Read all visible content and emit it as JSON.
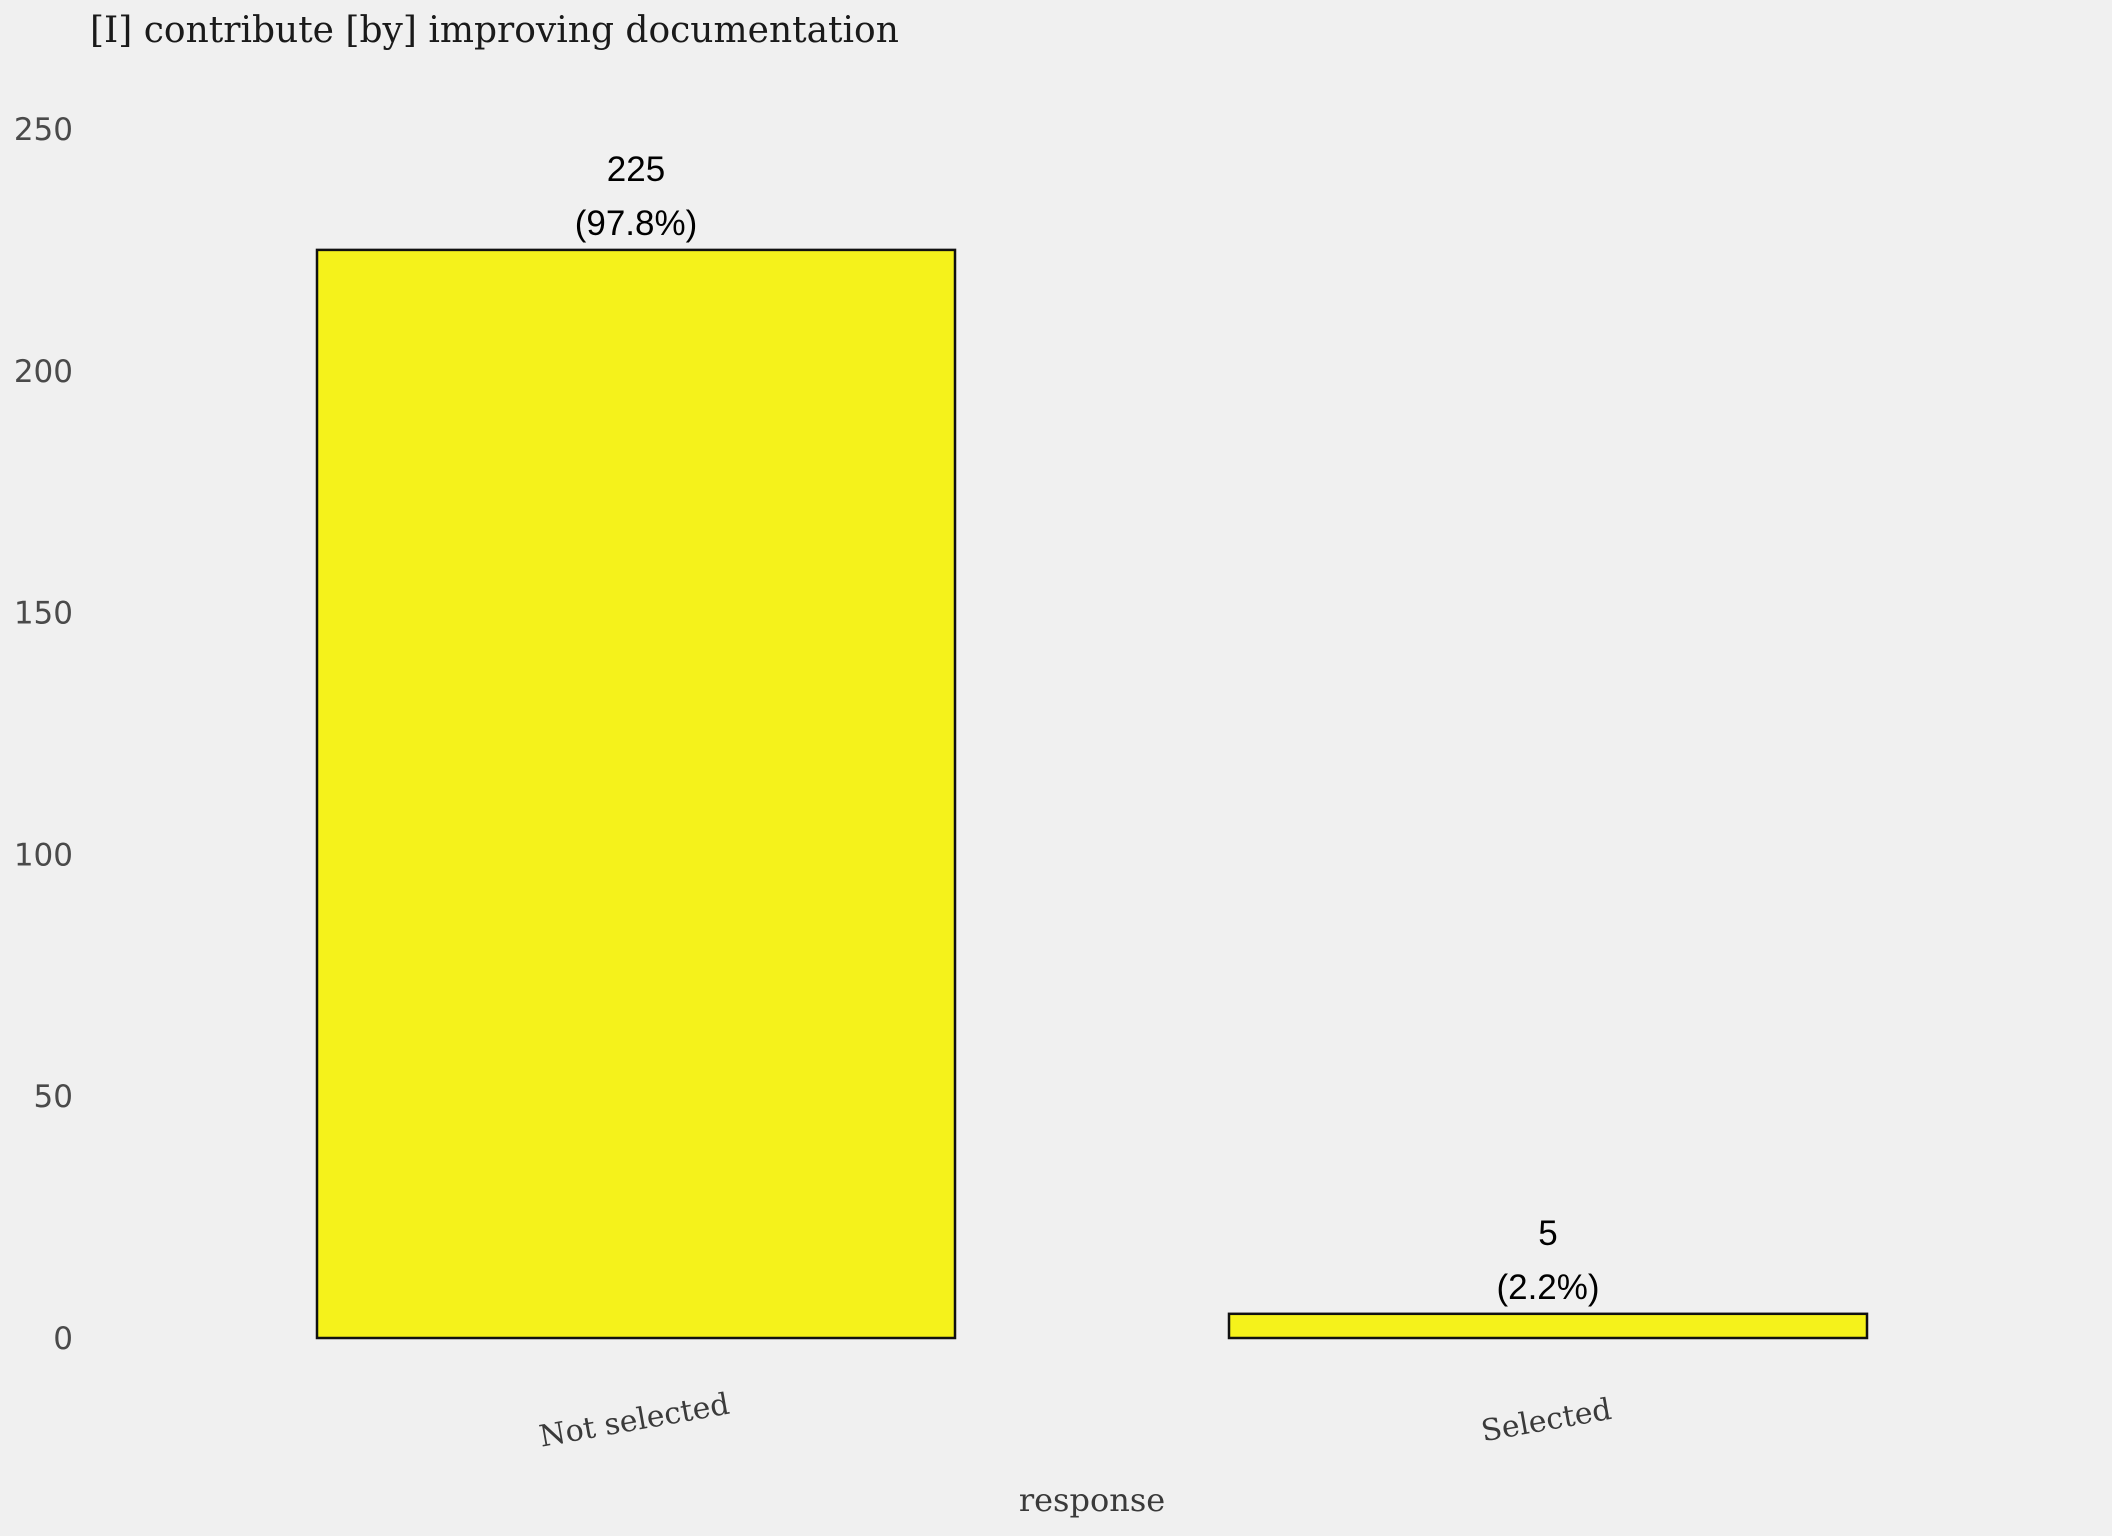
{
  "chart_data": {
    "type": "bar",
    "title": "[I] contribute [by] improving documentation",
    "xlabel": "response",
    "ylabel": "",
    "categories": [
      "Not selected",
      "Selected"
    ],
    "values": [
      225,
      5
    ],
    "data_labels": [
      {
        "count": "225",
        "percent": "(97.8%)"
      },
      {
        "count": "5",
        "percent": "(2.2%)"
      }
    ],
    "ylim": [
      0,
      250
    ],
    "yticks": [
      "0",
      "50",
      "100",
      "150",
      "200",
      "250"
    ],
    "grid": false,
    "legend": "none",
    "bar_color": "#f5f21b",
    "bar_edge_color": "#111111",
    "background_color": "#f0f0f0"
  }
}
